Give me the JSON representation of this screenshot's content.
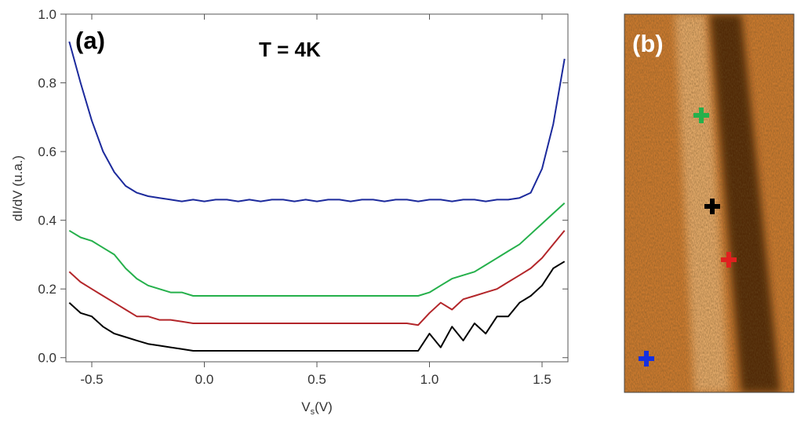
{
  "chart_data": {
    "type": "line",
    "annotations": [
      "(a)",
      "T = 4K"
    ],
    "ylabel": "dI/dV (u.a.)",
    "xlabel": [
      "V",
      "s",
      "(V)"
    ],
    "x": [
      -0.6,
      -0.55,
      -0.5,
      -0.45,
      -0.4,
      -0.35,
      -0.3,
      -0.25,
      -0.2,
      -0.15,
      -0.1,
      -0.05,
      0,
      0.05,
      0.1,
      0.15,
      0.2,
      0.25,
      0.3,
      0.35,
      0.4,
      0.45,
      0.5,
      0.55,
      0.6,
      0.65,
      0.7,
      0.75,
      0.8,
      0.85,
      0.9,
      0.95,
      1.0,
      1.05,
      1.1,
      1.15,
      1.2,
      1.25,
      1.3,
      1.35,
      1.4,
      1.45,
      1.5,
      1.55,
      1.6
    ],
    "xlim": [
      -0.615,
      1.615
    ],
    "xticks": [
      -0.5,
      {
        "value": 0,
        "label": "0.0"
      },
      0.5,
      {
        "value": 1,
        "label": "1.0"
      },
      1.5
    ],
    "ylim": [
      -0.012,
      1.0
    ],
    "yticks": [
      {
        "value": 0,
        "label": "0.0"
      },
      0.2,
      0.4,
      0.6,
      0.8,
      {
        "value": 1,
        "label": "1.0"
      }
    ],
    "series": [
      {
        "color": "#1c2a9c",
        "values": [
          0.92,
          0.8,
          0.69,
          0.6,
          0.54,
          0.5,
          0.48,
          0.47,
          0.465,
          0.46,
          0.455,
          0.46,
          0.455,
          0.46,
          0.46,
          0.455,
          0.46,
          0.455,
          0.46,
          0.46,
          0.455,
          0.46,
          0.455,
          0.46,
          0.46,
          0.455,
          0.46,
          0.46,
          0.455,
          0.46,
          0.46,
          0.455,
          0.46,
          0.46,
          0.455,
          0.46,
          0.46,
          0.455,
          0.46,
          0.46,
          0.465,
          0.48,
          0.55,
          0.68,
          0.87
        ]
      },
      {
        "color": "#25b04b",
        "values": [
          0.37,
          0.35,
          0.34,
          0.32,
          0.3,
          0.26,
          0.23,
          0.21,
          0.2,
          0.19,
          0.19,
          0.18,
          0.18,
          0.18,
          0.18,
          0.18,
          0.18,
          0.18,
          0.18,
          0.18,
          0.18,
          0.18,
          0.18,
          0.18,
          0.18,
          0.18,
          0.18,
          0.18,
          0.18,
          0.18,
          0.18,
          0.18,
          0.19,
          0.21,
          0.23,
          0.24,
          0.25,
          0.27,
          0.29,
          0.31,
          0.33,
          0.36,
          0.39,
          0.42,
          0.45
        ]
      },
      {
        "color": "#b3262a",
        "values": [
          0.25,
          0.22,
          0.2,
          0.18,
          0.16,
          0.14,
          0.12,
          0.12,
          0.11,
          0.11,
          0.105,
          0.1,
          0.1,
          0.1,
          0.1,
          0.1,
          0.1,
          0.1,
          0.1,
          0.1,
          0.1,
          0.1,
          0.1,
          0.1,
          0.1,
          0.1,
          0.1,
          0.1,
          0.1,
          0.1,
          0.1,
          0.095,
          0.13,
          0.16,
          0.14,
          0.17,
          0.18,
          0.19,
          0.2,
          0.22,
          0.24,
          0.26,
          0.29,
          0.33,
          0.37
        ]
      },
      {
        "color": "#000000",
        "values": [
          0.16,
          0.13,
          0.12,
          0.09,
          0.07,
          0.06,
          0.05,
          0.04,
          0.035,
          0.03,
          0.025,
          0.02,
          0.02,
          0.02,
          0.02,
          0.02,
          0.02,
          0.02,
          0.02,
          0.02,
          0.02,
          0.02,
          0.02,
          0.02,
          0.02,
          0.02,
          0.02,
          0.02,
          0.02,
          0.02,
          0.02,
          0.02,
          0.07,
          0.03,
          0.09,
          0.05,
          0.1,
          0.07,
          0.12,
          0.12,
          0.16,
          0.18,
          0.21,
          0.26,
          0.28
        ]
      }
    ]
  },
  "panel_b": {
    "label": "(b)"
  }
}
